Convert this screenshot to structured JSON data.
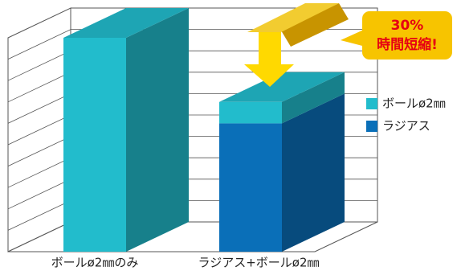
{
  "chart_data": {
    "type": "bar3d_stacked",
    "categories": [
      "ボールø2㎜のみ",
      "ラジアス+ボールø2㎜"
    ],
    "series": [
      {
        "name": "ラジアス",
        "color": "#0a6fb8",
        "values": [
          null,
          60
        ]
      },
      {
        "name": "ボールø2㎜",
        "color": "#22bccc",
        "values": [
          100,
          10
        ]
      }
    ],
    "ylim": [
      0,
      100
    ],
    "annotation": {
      "line1": "30%",
      "line2": "時間短縮!"
    }
  }
}
